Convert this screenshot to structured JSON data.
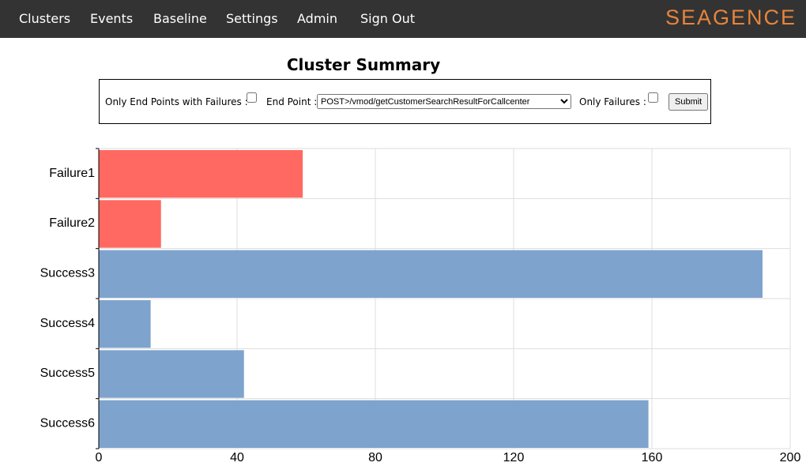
{
  "nav": {
    "items": [
      "Clusters",
      "Events",
      "Baseline",
      "Settings",
      "Admin",
      "Sign Out"
    ],
    "logo": "SEAGENCE"
  },
  "page": {
    "title": "Cluster Summary"
  },
  "form": {
    "only_endpoints_label": "Only End Points with Failures :",
    "endpoint_label": "End Point :",
    "endpoint_value": "POST>/vmod/getCustomerSearchResultForCallcenter",
    "only_failures_label": "Only Failures :",
    "submit": "Submit"
  },
  "chart_data": {
    "type": "hbar",
    "categories": [
      "Failure1",
      "Failure2",
      "Success3",
      "Success4",
      "Success5",
      "Success6"
    ],
    "values": [
      59,
      18,
      192,
      15,
      42,
      159
    ],
    "colors": [
      "#ff6961",
      "#ff6961",
      "#7ea3cd",
      "#7ea3cd",
      "#7ea3cd",
      "#7ea3cd"
    ],
    "xlim": [
      0,
      200
    ],
    "xticks": [
      0,
      40,
      80,
      120,
      160,
      200
    ],
    "grid": true
  }
}
